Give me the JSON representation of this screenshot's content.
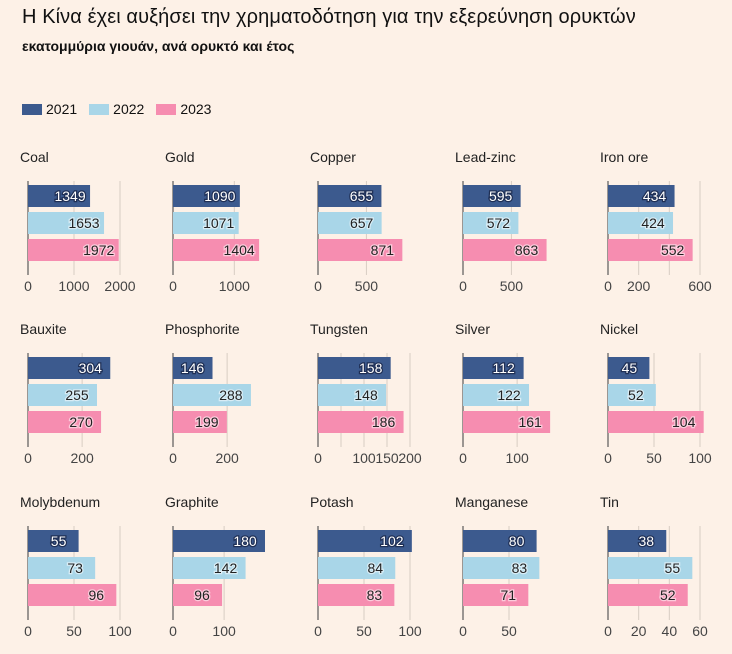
{
  "title": "Η Κίνα έχει αυξήσει την χρηματοδότηση για την εξερεύνηση ορυκτών",
  "subtitle": "εκατομμύρια γιουάν, ανά ορυκτό και έτος",
  "legend": [
    {
      "label": "2021",
      "color": "#3C5A8E"
    },
    {
      "label": "2022",
      "color": "#A9D6E8"
    },
    {
      "label": "2023",
      "color": "#F68DB0"
    }
  ],
  "chart_data": [
    {
      "type": "bar",
      "title": "Coal",
      "categories": [
        "2021",
        "2022",
        "2023"
      ],
      "values": [
        1349,
        1653,
        1972
      ],
      "xlim": [
        0,
        2000
      ],
      "ticks": [
        0,
        1000,
        2000
      ]
    },
    {
      "type": "bar",
      "title": "Gold",
      "categories": [
        "2021",
        "2022",
        "2023"
      ],
      "values": [
        1090,
        1071,
        1404
      ],
      "xlim": [
        0,
        1500
      ],
      "ticks": [
        0,
        1000
      ]
    },
    {
      "type": "bar",
      "title": "Copper",
      "categories": [
        "2021",
        "2022",
        "2023"
      ],
      "values": [
        655,
        657,
        871
      ],
      "xlim": [
        0,
        950
      ],
      "ticks": [
        0,
        500
      ]
    },
    {
      "type": "bar",
      "title": "Lead-zinc",
      "categories": [
        "2021",
        "2022",
        "2023"
      ],
      "values": [
        595,
        572,
        863
      ],
      "xlim": [
        0,
        950
      ],
      "ticks": [
        0,
        500
      ]
    },
    {
      "type": "bar",
      "title": "Iron ore",
      "categories": [
        "2021",
        "2022",
        "2023"
      ],
      "values": [
        434,
        424,
        552
      ],
      "xlim": [
        0,
        600
      ],
      "ticks": [
        0,
        200,
        600
      ],
      "gridlines": [
        0,
        200,
        400,
        600
      ]
    },
    {
      "type": "bar",
      "title": "Bauxite",
      "categories": [
        "2021",
        "2022",
        "2023"
      ],
      "values": [
        304,
        255,
        270
      ],
      "xlim": [
        0,
        340
      ],
      "ticks": [
        0,
        200
      ]
    },
    {
      "type": "bar",
      "title": "Phosphorite",
      "categories": [
        "2021",
        "2022",
        "2023"
      ],
      "values": [
        146,
        288,
        199
      ],
      "xlim": [
        0,
        340
      ],
      "ticks": [
        0,
        200
      ]
    },
    {
      "type": "bar",
      "title": "Tungsten",
      "categories": [
        "2021",
        "2022",
        "2023"
      ],
      "values": [
        158,
        148,
        186
      ],
      "xlim": [
        0,
        200
      ],
      "ticks": [
        0,
        100,
        150,
        200
      ],
      "gridlines": [
        0,
        50,
        100,
        150,
        200
      ]
    },
    {
      "type": "bar",
      "title": "Silver",
      "categories": [
        "2021",
        "2022",
        "2023"
      ],
      "values": [
        112,
        122,
        161
      ],
      "xlim": [
        0,
        170
      ],
      "ticks": [
        0,
        100
      ]
    },
    {
      "type": "bar",
      "title": "Nickel",
      "categories": [
        "2021",
        "2022",
        "2023"
      ],
      "values": [
        45,
        52,
        104
      ],
      "xlim": [
        0,
        100
      ],
      "ticks": [
        0,
        50,
        100
      ]
    },
    {
      "type": "bar",
      "title": "Molybdenum",
      "categories": [
        "2021",
        "2022",
        "2023"
      ],
      "values": [
        55,
        73,
        96
      ],
      "xlim": [
        0,
        100
      ],
      "ticks": [
        0,
        50,
        100
      ]
    },
    {
      "type": "bar",
      "title": "Graphite",
      "categories": [
        "2021",
        "2022",
        "2023"
      ],
      "values": [
        180,
        142,
        96
      ],
      "xlim": [
        0,
        180
      ],
      "ticks": [
        0,
        100
      ]
    },
    {
      "type": "bar",
      "title": "Potash",
      "categories": [
        "2021",
        "2022",
        "2023"
      ],
      "values": [
        102,
        84,
        83
      ],
      "xlim": [
        0,
        100
      ],
      "ticks": [
        0,
        50,
        100
      ]
    },
    {
      "type": "bar",
      "title": "Manganese",
      "categories": [
        "2021",
        "2022",
        "2023"
      ],
      "values": [
        80,
        83,
        71
      ],
      "xlim": [
        0,
        100
      ],
      "ticks": [
        0,
        50
      ]
    },
    {
      "type": "bar",
      "title": "Tin",
      "categories": [
        "2021",
        "2022",
        "2023"
      ],
      "values": [
        38,
        55,
        52
      ],
      "xlim": [
        0,
        60
      ],
      "ticks": [
        0,
        20,
        40,
        60
      ],
      "gridlines": [
        0,
        20,
        40,
        60
      ]
    }
  ]
}
